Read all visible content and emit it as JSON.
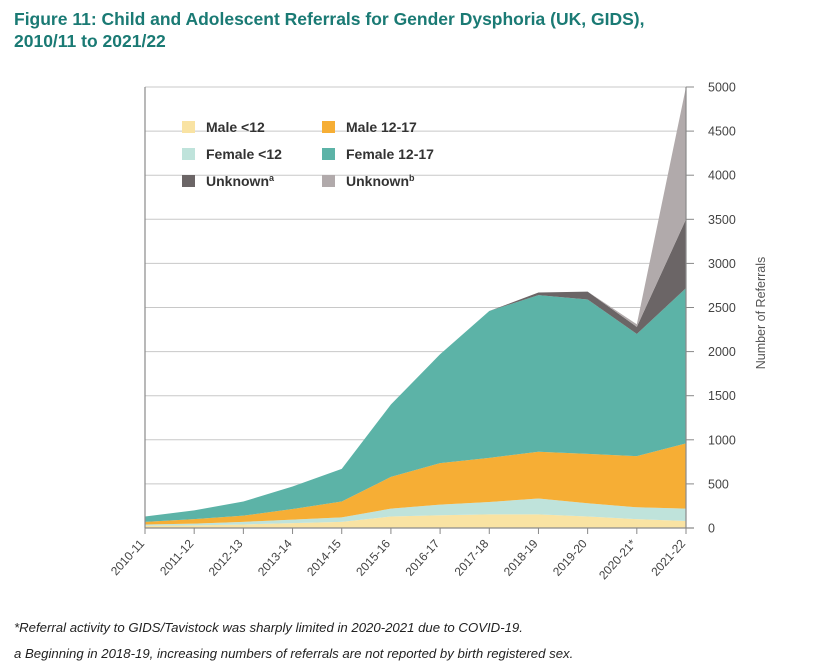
{
  "figure": {
    "title_line1": "Figure 11: Child and Adolescent Referrals for Gender Dysphoria (UK, GIDS),",
    "title_line2": "2010/11 to 2021/22",
    "footnote_covid": "*Referral activity to GIDS/Tavistock was sharply limited in 2020-2021 due to COVID-19.",
    "footnote_a": "a Beginning in 2018-19, increasing numbers of referrals are not reported by birth registered sex."
  },
  "chart_data": {
    "type": "area",
    "stacked": true,
    "title": "",
    "xlabel": "",
    "ylabel": "Number of Referrals",
    "ylim": [
      0,
      5000
    ],
    "y_ticks": [
      0,
      500,
      1000,
      1500,
      2000,
      2500,
      3000,
      3500,
      4000,
      4500,
      5000
    ],
    "y_axis_side": "right",
    "grid": "horizontal",
    "legend_position": "top-left",
    "categories": [
      "2010-11",
      "2011-12",
      "2012-13",
      "2013-14",
      "2014-15",
      "2015-16",
      "2016-17",
      "2017-18",
      "2018-19",
      "2019-20",
      "2020-21*",
      "2021-22"
    ],
    "series": [
      {
        "name": "Male <12",
        "legend_label": "Male <12",
        "color": "#f9e3a3",
        "values": [
          25,
          30,
          40,
          55,
          70,
          130,
          145,
          155,
          155,
          130,
          100,
          80
        ]
      },
      {
        "name": "Female <12",
        "legend_label": "Female <12",
        "color": "#bfe3db",
        "values": [
          15,
          20,
          30,
          40,
          50,
          90,
          120,
          140,
          180,
          150,
          135,
          140
        ]
      },
      {
        "name": "Male 12-17",
        "legend_label": "Male 12-17",
        "color": "#f6ae35",
        "values": [
          30,
          50,
          70,
          120,
          180,
          360,
          470,
          500,
          530,
          560,
          580,
          740
        ]
      },
      {
        "name": "Female 12-17",
        "legend_label": "Female 12-17",
        "color": "#5cb3a7",
        "values": [
          60,
          100,
          160,
          255,
          370,
          820,
          1235,
          1665,
          1775,
          1750,
          1385,
          1760
        ]
      },
      {
        "name": "Unknown a",
        "legend_label": "Unknown",
        "legend_sup": "a",
        "color": "#6b6566",
        "values": [
          0,
          0,
          0,
          0,
          0,
          0,
          0,
          0,
          30,
          90,
          80,
          780
        ]
      },
      {
        "name": "Unknown b",
        "legend_label": "Unknown",
        "legend_sup": "b",
        "color": "#b1aaab",
        "values": [
          0,
          0,
          0,
          0,
          0,
          0,
          0,
          0,
          0,
          0,
          30,
          1500
        ]
      }
    ]
  }
}
